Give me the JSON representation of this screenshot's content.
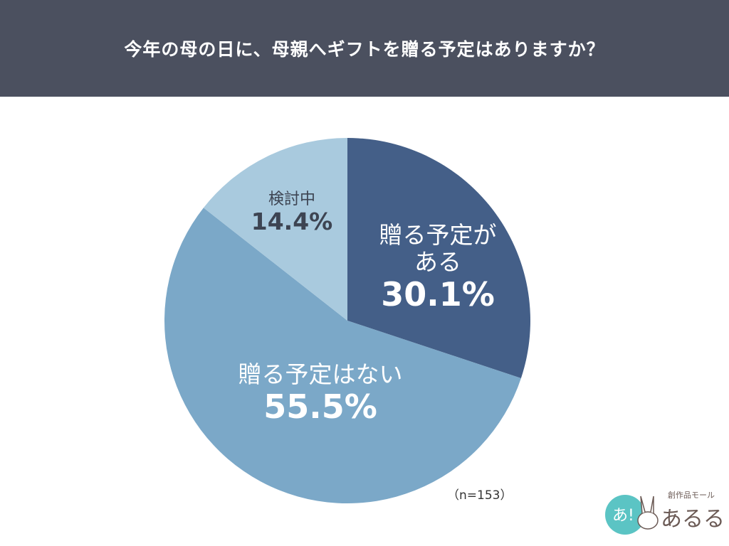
{
  "header": {
    "title": "今年の母の日に、母親へギフトを贈る予定はありますか？"
  },
  "chart_data": {
    "type": "pie",
    "title": "今年の母の日に、母親へギフトを贈る予定はありますか？",
    "start": "12 o'clock, clockwise",
    "slices": [
      {
        "label": "贈る予定がある",
        "value": 30.1,
        "value_label": "30.1%",
        "color": "#445f88"
      },
      {
        "label": "贈る予定はない",
        "value": 55.5,
        "value_label": "55.5%",
        "color": "#7ba8c8"
      },
      {
        "label": "検討中",
        "value": 14.4,
        "value_label": "14.4%",
        "color": "#a9cade"
      }
    ],
    "note": "（n=153）"
  },
  "logo": {
    "text": "創作品モール あるる"
  }
}
